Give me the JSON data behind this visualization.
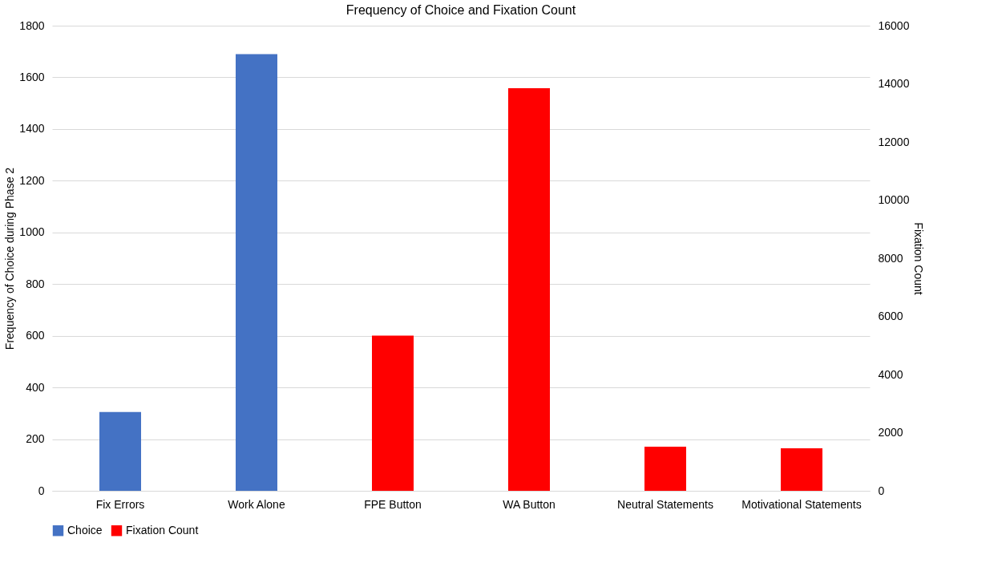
{
  "chart_data": {
    "type": "bar",
    "title": "Frequency of Choice and Fixation Count",
    "categories": [
      "Fix Errors",
      "Work Alone",
      "FPE Button",
      "WA Button",
      "Neutral Statements",
      "Motivational Statements"
    ],
    "series": [
      {
        "name": "Choice",
        "color": "#4472c4",
        "values": [
          305,
          1690,
          null,
          null,
          null,
          null
        ]
      },
      {
        "name": "Fixation Count",
        "color": "#ff0000",
        "axis": "y2",
        "values": [
          null,
          null,
          5340,
          13850,
          1520,
          1460
        ]
      }
    ],
    "ylabel": "Frequency of Choice during Phase 2",
    "y2label": "Fixation Count",
    "ylim": [
      0,
      1800
    ],
    "yticks": [
      0,
      200,
      400,
      600,
      800,
      1000,
      1200,
      1400,
      1600,
      1800
    ],
    "y2lim": [
      0,
      16000
    ],
    "y2ticks": [
      0,
      2000,
      4000,
      6000,
      8000,
      10000,
      12000,
      14000,
      16000
    ],
    "grid": "y",
    "legend": "bottom"
  }
}
